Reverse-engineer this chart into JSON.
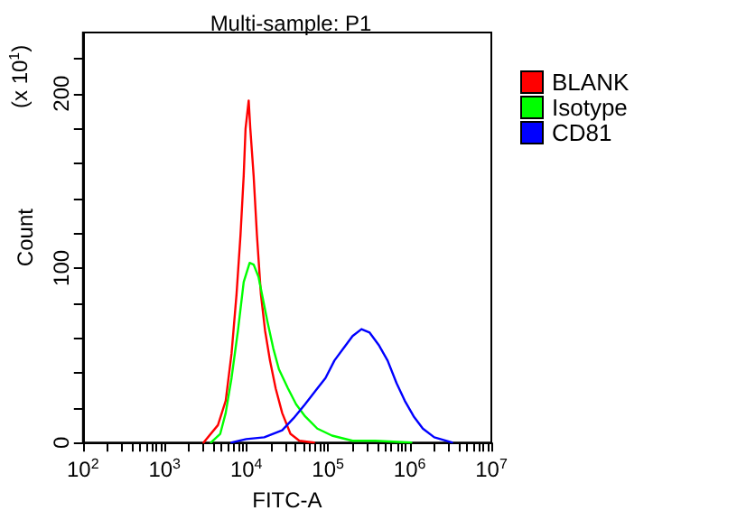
{
  "chart_data": {
    "type": "line",
    "title": "Multi-sample: P1",
    "xlabel": "FITC-A",
    "ylabel": "Count",
    "annotations": [
      "(x 10$^{1}$)"
    ],
    "log": "x",
    "grid": false,
    "legend": "right",
    "marker": "none",
    "line_style": "solid",
    "xlim": [
      100,
      10000000
    ],
    "xticks": [
      {
        "value": 100,
        "label": "10$^{2}$"
      },
      {
        "value": 200,
        "label": null
      },
      {
        "value": 300,
        "label": null
      },
      {
        "value": 400,
        "label": null
      },
      {
        "value": 500,
        "label": null
      },
      {
        "value": 600,
        "label": null
      },
      {
        "value": 700,
        "label": null
      },
      {
        "value": 800,
        "label": null
      },
      {
        "value": 900,
        "label": null
      },
      {
        "value": 1000,
        "label": "10$^{3}$"
      },
      {
        "value": 2000,
        "label": null
      },
      {
        "value": 3000,
        "label": null
      },
      {
        "value": 4000,
        "label": null
      },
      {
        "value": 5000,
        "label": null
      },
      {
        "value": 6000,
        "label": null
      },
      {
        "value": 7000,
        "label": null
      },
      {
        "value": 8000,
        "label": null
      },
      {
        "value": 9000,
        "label": null
      },
      {
        "value": 10000,
        "label": "10$^{4}$"
      },
      {
        "value": 20000,
        "label": null
      },
      {
        "value": 30000,
        "label": null
      },
      {
        "value": 40000,
        "label": null
      },
      {
        "value": 50000,
        "label": null
      },
      {
        "value": 60000,
        "label": null
      },
      {
        "value": 70000,
        "label": null
      },
      {
        "value": 80000,
        "label": null
      },
      {
        "value": 90000,
        "label": null
      },
      {
        "value": 100000,
        "label": "10$^{5}$"
      },
      {
        "value": 200000,
        "label": null
      },
      {
        "value": 300000,
        "label": null
      },
      {
        "value": 400000,
        "label": null
      },
      {
        "value": 500000,
        "label": null
      },
      {
        "value": 600000,
        "label": null
      },
      {
        "value": 700000,
        "label": null
      },
      {
        "value": 800000,
        "label": null
      },
      {
        "value": 900000,
        "label": null
      },
      {
        "value": 1000000,
        "label": "10$^{6}$"
      },
      {
        "value": 2000000,
        "label": null
      },
      {
        "value": 3000000,
        "label": null
      },
      {
        "value": 4000000,
        "label": null
      },
      {
        "value": 5000000,
        "label": null
      },
      {
        "value": 6000000,
        "label": null
      },
      {
        "value": 7000000,
        "label": null
      },
      {
        "value": 8000000,
        "label": null
      },
      {
        "value": 9000000,
        "label": null
      },
      {
        "value": 10000000,
        "label": "10$^{7}$"
      }
    ],
    "ylim": [
      0,
      235
    ],
    "yticks": [
      0,
      {
        "value": 20,
        "label": null
      },
      {
        "value": 40,
        "label": null
      },
      {
        "value": 60,
        "label": null
      },
      {
        "value": 80,
        "label": null
      },
      100,
      {
        "value": 120,
        "label": null
      },
      {
        "value": 140,
        "label": null
      },
      {
        "value": 160,
        "label": null
      },
      {
        "value": 180,
        "label": null
      },
      200,
      {
        "value": 220,
        "label": null
      }
    ],
    "series": [
      {
        "name": "BLANK",
        "color": "#ff0000",
        "x": [
          3000,
          4500,
          5600,
          6600,
          7600,
          8500,
          9300,
          9800,
          10700,
          11200,
          12300,
          13500,
          15100,
          17000,
          19500,
          22900,
          27500,
          34700,
          44700,
          67600
        ],
        "values": [
          0,
          10,
          24,
          51,
          85,
          119,
          153,
          180,
          196,
          180,
          153,
          119,
          85,
          64,
          47,
          31,
          17,
          5,
          1,
          0
        ]
      },
      {
        "name": "Isotype",
        "color": "#00ff00",
        "x": [
          3700,
          4800,
          5600,
          6600,
          7900,
          9300,
          11000,
          12300,
          14100,
          16200,
          18200,
          21400,
          25100,
          32400,
          40700,
          52500,
          74100,
          112000,
          200000,
          380000,
          1050000
        ],
        "values": [
          0,
          5,
          17,
          37,
          64,
          92,
          103,
          102,
          95,
          81,
          69,
          54,
          42,
          31,
          22,
          15,
          8,
          4,
          1,
          1,
          0
        ]
      },
      {
        "name": "CD81",
        "color": "#0000ff",
        "x": [
          6600,
          10000,
          16600,
          27500,
          38000,
          52500,
          74100,
          93300,
          120000,
          155000,
          200000,
          257000,
          324000,
          417000,
          537000,
          692000,
          871000,
          1120000,
          1450000,
          2000000,
          3310000
        ],
        "values": [
          0,
          2,
          3,
          7,
          14,
          22,
          31,
          37,
          47,
          54,
          61,
          65,
          63,
          56,
          47,
          34,
          24,
          15,
          8,
          3,
          0
        ]
      }
    ]
  }
}
